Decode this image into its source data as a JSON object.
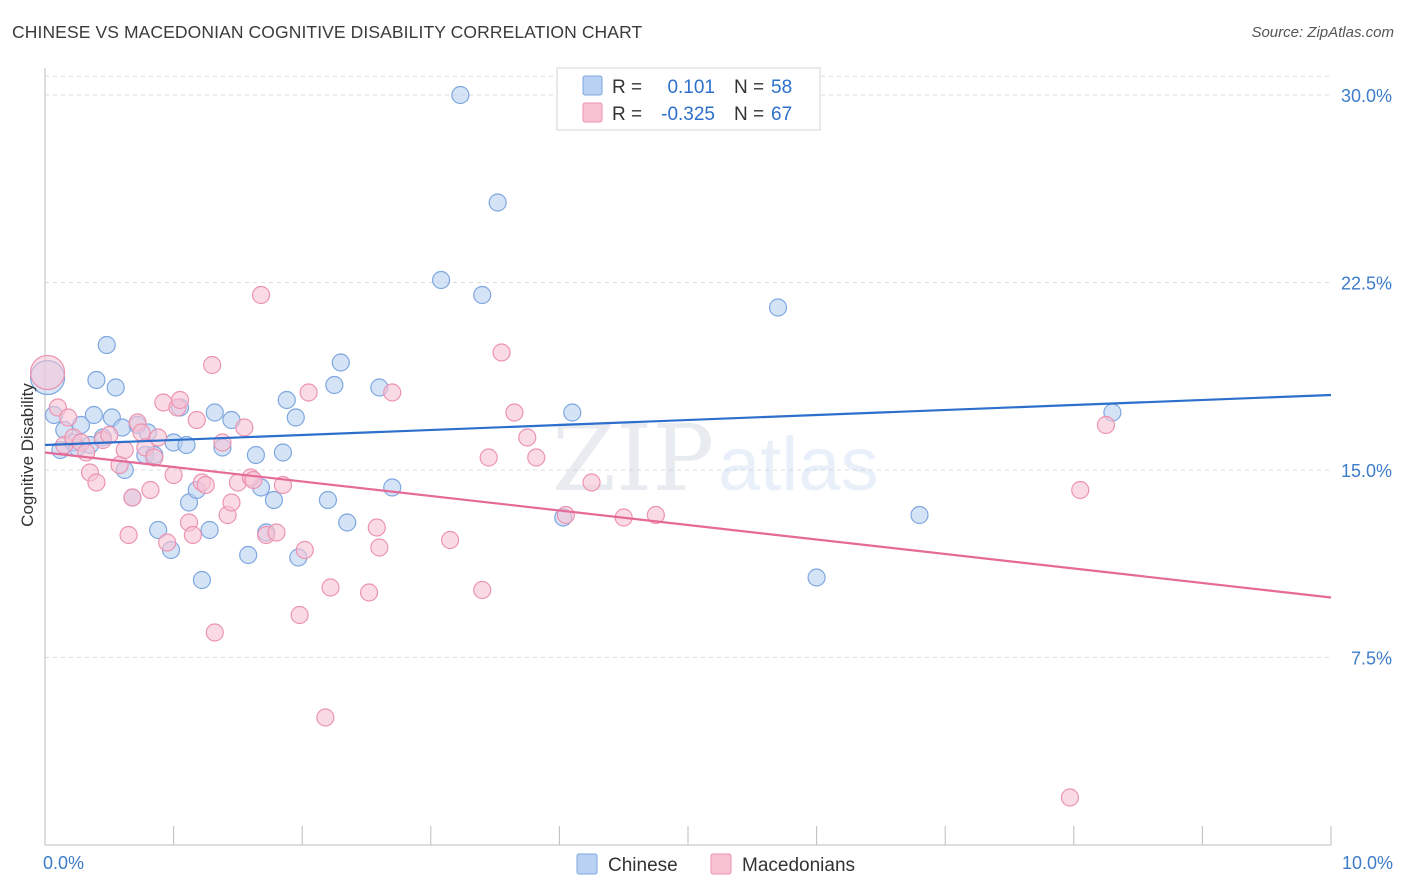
{
  "header": {
    "title": "CHINESE VS MACEDONIAN COGNITIVE DISABILITY CORRELATION CHART",
    "source": "Source: ZipAtlas.com"
  },
  "watermark": {
    "zip": "ZIP",
    "atlas": "atlas"
  },
  "colors": {
    "chinese_fill": "#b9d1f2",
    "chinese_stroke": "#7ea7df",
    "chinese_line": "#2d6fcc",
    "macedonian_fill": "#f7c3d3",
    "macedonian_stroke": "#ec93b1",
    "macedonian_line": "#e56a97",
    "tick_text": "#3d7cc9",
    "grid": "#dcdcdc"
  },
  "chart_data": {
    "type": "scatter",
    "title": "CHINESE VS MACEDONIAN COGNITIVE DISABILITY CORRELATION CHART",
    "xlabel": "",
    "ylabel": "Cognitive Disability",
    "xlim": [
      0,
      10
    ],
    "ylim": [
      0,
      31
    ],
    "x_ticks": [
      0,
      1,
      2,
      3,
      4,
      5,
      6,
      7,
      8,
      9,
      10
    ],
    "x_tick_labels": [
      {
        "value": 0,
        "label": "0.0%"
      },
      {
        "value": 10,
        "label": "10.0%"
      }
    ],
    "y_ticks": [
      7.5,
      15.0,
      22.5,
      30.0
    ],
    "y_tick_labels": [
      "7.5%",
      "15.0%",
      "22.5%",
      "30.0%"
    ],
    "grid": "horizontal dashed",
    "legend": {
      "position": "bottom-center",
      "entries": [
        "Chinese",
        "Macedonians"
      ],
      "stats": [
        {
          "r_label": "R =",
          "r_value": "0.101",
          "n_label": "N =",
          "n_value": "58"
        },
        {
          "r_label": "R =",
          "r_value": "-0.325",
          "n_label": "N =",
          "n_value": "67"
        }
      ]
    },
    "series": [
      {
        "name": "Chinese",
        "trend": {
          "x": [
            0,
            10
          ],
          "y": [
            16.0,
            18.0
          ]
        },
        "points": [
          [
            0.02,
            18.7
          ],
          [
            0.07,
            17.2
          ],
          [
            0.12,
            15.8
          ],
          [
            0.15,
            16.6
          ],
          [
            0.22,
            16.1
          ],
          [
            0.25,
            15.9
          ],
          [
            0.28,
            16.8
          ],
          [
            0.35,
            16.0
          ],
          [
            0.38,
            17.2
          ],
          [
            0.4,
            18.6
          ],
          [
            0.45,
            16.3
          ],
          [
            0.48,
            20.0
          ],
          [
            0.52,
            17.1
          ],
          [
            0.55,
            18.3
          ],
          [
            0.6,
            16.7
          ],
          [
            0.62,
            15.0
          ],
          [
            0.68,
            13.9
          ],
          [
            0.72,
            16.8
          ],
          [
            0.78,
            15.6
          ],
          [
            0.8,
            16.5
          ],
          [
            0.85,
            15.6
          ],
          [
            0.88,
            12.6
          ],
          [
            0.98,
            11.8
          ],
          [
            1.0,
            16.1
          ],
          [
            1.05,
            17.5
          ],
          [
            1.1,
            16.0
          ],
          [
            1.12,
            13.7
          ],
          [
            1.18,
            14.2
          ],
          [
            1.22,
            10.6
          ],
          [
            1.28,
            12.6
          ],
          [
            1.32,
            17.3
          ],
          [
            1.38,
            15.9
          ],
          [
            1.45,
            17.0
          ],
          [
            1.58,
            11.6
          ],
          [
            1.64,
            15.6
          ],
          [
            1.68,
            14.3
          ],
          [
            1.72,
            12.5
          ],
          [
            1.78,
            13.8
          ],
          [
            1.85,
            15.7
          ],
          [
            1.88,
            17.8
          ],
          [
            1.95,
            17.1
          ],
          [
            1.97,
            11.5
          ],
          [
            2.2,
            13.8
          ],
          [
            2.25,
            18.4
          ],
          [
            2.3,
            19.3
          ],
          [
            2.35,
            12.9
          ],
          [
            2.6,
            18.3
          ],
          [
            2.7,
            14.3
          ],
          [
            3.08,
            22.6
          ],
          [
            3.23,
            30.0
          ],
          [
            3.4,
            22.0
          ],
          [
            3.52,
            25.7
          ],
          [
            4.03,
            13.1
          ],
          [
            4.1,
            17.3
          ],
          [
            5.7,
            21.5
          ],
          [
            6.0,
            10.7
          ],
          [
            6.8,
            13.2
          ],
          [
            8.3,
            17.3
          ]
        ]
      },
      {
        "name": "Macedonians",
        "trend": {
          "x": [
            0,
            10
          ],
          "y": [
            15.7,
            9.9
          ]
        },
        "points": [
          [
            0.02,
            18.9
          ],
          [
            0.1,
            17.5
          ],
          [
            0.15,
            16.0
          ],
          [
            0.18,
            17.1
          ],
          [
            0.22,
            16.3
          ],
          [
            0.28,
            16.1
          ],
          [
            0.32,
            15.7
          ],
          [
            0.35,
            14.9
          ],
          [
            0.4,
            14.5
          ],
          [
            0.45,
            16.2
          ],
          [
            0.5,
            16.4
          ],
          [
            0.58,
            15.2
          ],
          [
            0.62,
            15.8
          ],
          [
            0.65,
            12.4
          ],
          [
            0.68,
            13.9
          ],
          [
            0.72,
            16.9
          ],
          [
            0.75,
            16.5
          ],
          [
            0.78,
            15.9
          ],
          [
            0.82,
            14.2
          ],
          [
            0.85,
            15.5
          ],
          [
            0.88,
            16.3
          ],
          [
            0.92,
            17.7
          ],
          [
            0.95,
            12.1
          ],
          [
            1.0,
            14.8
          ],
          [
            1.03,
            17.5
          ],
          [
            1.05,
            17.8
          ],
          [
            1.12,
            12.9
          ],
          [
            1.15,
            12.4
          ],
          [
            1.18,
            17.0
          ],
          [
            1.22,
            14.5
          ],
          [
            1.25,
            14.4
          ],
          [
            1.3,
            19.2
          ],
          [
            1.32,
            8.5
          ],
          [
            1.38,
            16.1
          ],
          [
            1.42,
            13.2
          ],
          [
            1.45,
            13.7
          ],
          [
            1.5,
            14.5
          ],
          [
            1.55,
            16.7
          ],
          [
            1.6,
            14.7
          ],
          [
            1.62,
            14.6
          ],
          [
            1.68,
            22.0
          ],
          [
            1.72,
            12.4
          ],
          [
            1.8,
            12.5
          ],
          [
            1.85,
            14.4
          ],
          [
            1.98,
            9.2
          ],
          [
            2.02,
            11.8
          ],
          [
            2.05,
            18.1
          ],
          [
            2.18,
            5.1
          ],
          [
            2.22,
            10.3
          ],
          [
            2.52,
            10.1
          ],
          [
            2.58,
            12.7
          ],
          [
            2.6,
            11.9
          ],
          [
            2.7,
            18.1
          ],
          [
            3.15,
            12.2
          ],
          [
            3.4,
            10.2
          ],
          [
            3.45,
            15.5
          ],
          [
            3.55,
            19.7
          ],
          [
            3.65,
            17.3
          ],
          [
            3.75,
            16.3
          ],
          [
            3.82,
            15.5
          ],
          [
            4.05,
            13.2
          ],
          [
            4.25,
            14.5
          ],
          [
            4.5,
            13.1
          ],
          [
            4.75,
            13.2
          ],
          [
            7.97,
            1.9
          ],
          [
            8.05,
            14.2
          ],
          [
            8.25,
            16.8
          ]
        ]
      }
    ]
  }
}
